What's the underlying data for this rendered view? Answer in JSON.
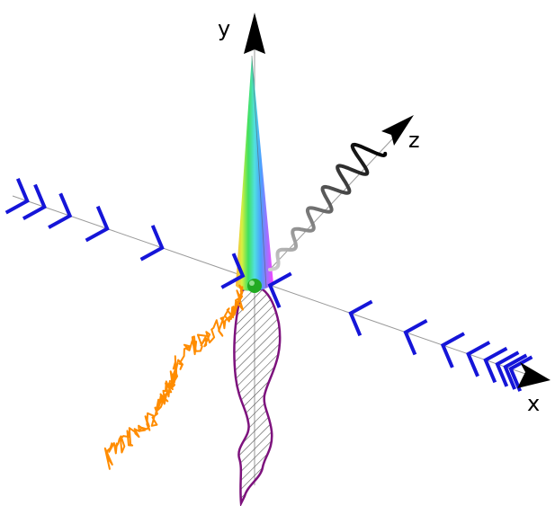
{
  "axes": {
    "x": {
      "label": "x"
    },
    "y": {
      "label": "y"
    },
    "z": {
      "label": "z"
    }
  },
  "colors": {
    "axis_line": "#9a9a9a",
    "arrowhead": "#000000",
    "chevrons": "#1515d8",
    "random_walk": "#ff8c00",
    "hatched_outline": "#7d127d",
    "hatch": "#555555",
    "origin_point": "#22aa22",
    "wave_start": "#d0d0d0",
    "wave_end": "#000000"
  },
  "cone": {
    "gradient_stops": [
      "#ffb03a",
      "#d8f040",
      "#40e060",
      "#50e0e0",
      "#4aa0ff",
      "#a070ff",
      "#ff40ff"
    ]
  },
  "icons": {
    "x_arrow": "arrowhead-icon",
    "y_arrow": "arrowhead-icon",
    "z_arrow": "arrowhead-icon"
  }
}
